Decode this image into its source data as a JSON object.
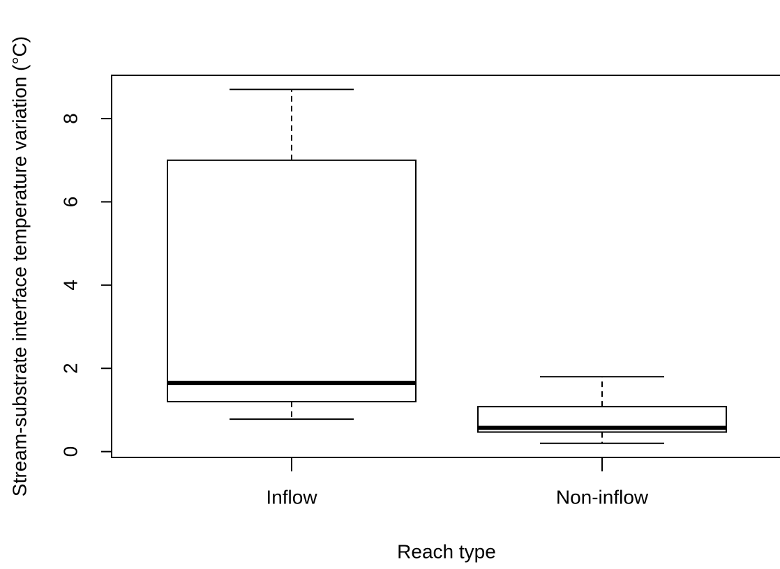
{
  "chart_data": {
    "type": "box",
    "xlabel": "Reach type",
    "ylabel": "Stream-substrate interface temperature variation (°C)",
    "categories": [
      "Inflow",
      "Non-inflow"
    ],
    "min": [
      0.78,
      0.2
    ],
    "q1": [
      1.2,
      0.47
    ],
    "median": [
      1.65,
      0.57
    ],
    "q3": [
      7.0,
      1.08
    ],
    "max": [
      8.7,
      1.8
    ],
    "color": "#000000",
    "ylim": [
      -0.14,
      9.04
    ],
    "yticks": [
      0,
      2,
      4,
      6,
      8
    ]
  }
}
